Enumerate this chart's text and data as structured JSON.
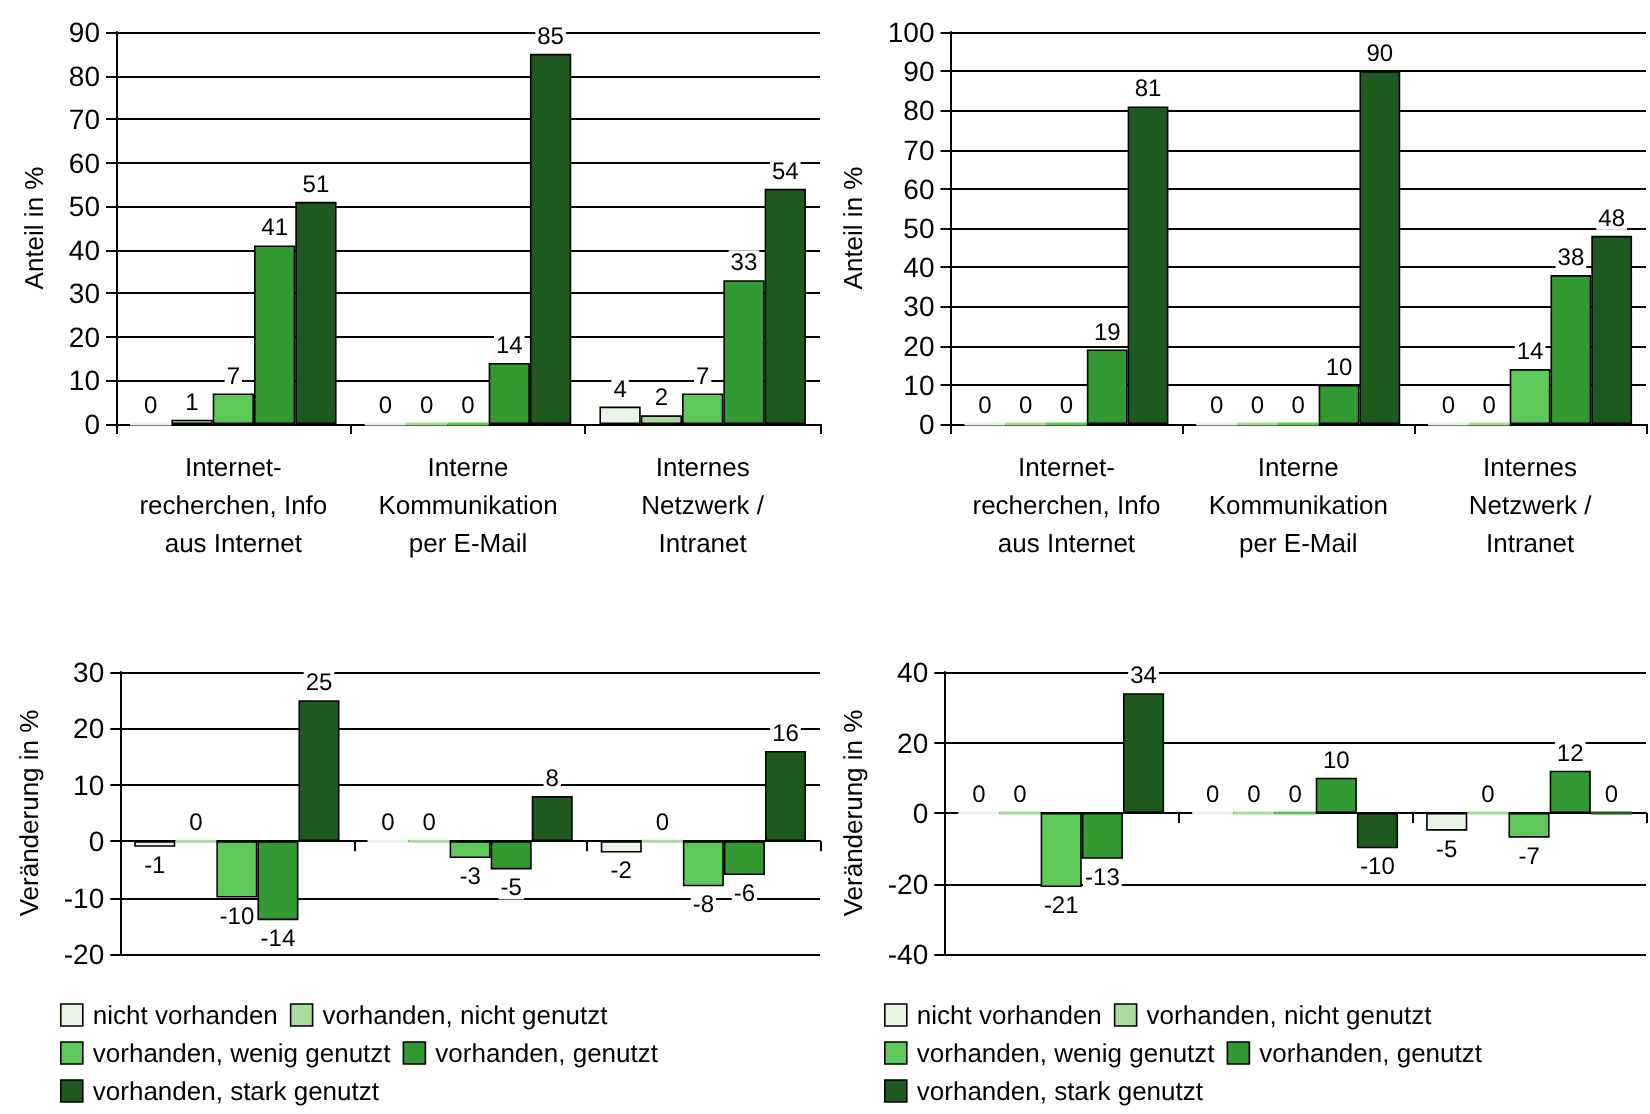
{
  "chart_data": [
    {
      "type": "bar",
      "categories": [
        "Internet-\nrecherchen, Info\naus Internet",
        "Interne\nKommunikation\nper E-Mail",
        "Internes\nNetzwerk /\nIntranet"
      ],
      "ylabel": "Anteil in %",
      "ylim": [
        0,
        90
      ],
      "yticks": [
        0,
        10,
        20,
        30,
        40,
        50,
        60,
        70,
        80,
        90
      ],
      "grid": "y",
      "data_labels": true,
      "legend": false,
      "series": [
        {
          "color": "#e8f5e4",
          "values": [
            0,
            0,
            4
          ]
        },
        {
          "color": "#a8dc9c",
          "values": [
            1,
            0,
            2
          ]
        },
        {
          "color": "#5ec85a",
          "values": [
            7,
            0,
            7
          ]
        },
        {
          "color": "#339933",
          "values": [
            41,
            14,
            33
          ]
        },
        {
          "color": "#1e5a1e",
          "values": [
            51,
            85,
            54
          ]
        }
      ]
    },
    {
      "type": "bar",
      "categories": [
        "Internet-\nrecherchen, Info\naus Internet",
        "Interne\nKommunikation\nper E-Mail",
        "Internes\nNetzwerk /\nIntranet"
      ],
      "ylabel": "Anteil in %",
      "ylim": [
        0,
        100
      ],
      "yticks": [
        0,
        10,
        20,
        30,
        40,
        50,
        60,
        70,
        80,
        90,
        100
      ],
      "grid": "y",
      "data_labels": true,
      "legend": false,
      "series": [
        {
          "color": "#e8f5e4",
          "values": [
            0,
            0,
            0
          ]
        },
        {
          "color": "#a8dc9c",
          "values": [
            0,
            0,
            0
          ]
        },
        {
          "color": "#5ec85a",
          "values": [
            0,
            0,
            14
          ]
        },
        {
          "color": "#339933",
          "values": [
            19,
            10,
            38
          ]
        },
        {
          "color": "#1e5a1e",
          "values": [
            81,
            90,
            48
          ]
        }
      ]
    },
    {
      "type": "bar",
      "categories": [
        null,
        null,
        null
      ],
      "ylabel": "Veränderung in %",
      "ylim": [
        -20,
        30
      ],
      "yticks": [
        -20,
        -10,
        0,
        10,
        20,
        30
      ],
      "grid": "y",
      "data_labels": true,
      "legend": "bottom",
      "series": [
        {
          "name": "nicht vorhanden",
          "color": "#e8f5e4",
          "values": [
            -1,
            0,
            -2
          ]
        },
        {
          "name": "vorhanden, nicht genutzt",
          "color": "#a8dc9c",
          "values": [
            0,
            0,
            0
          ]
        },
        {
          "name": "vorhanden, wenig genutzt",
          "color": "#5ec85a",
          "values": [
            -10,
            -3,
            -8
          ]
        },
        {
          "name": "vorhanden, genutzt",
          "color": "#339933",
          "values": [
            -14,
            -5,
            -6
          ]
        },
        {
          "name": "vorhanden, stark genutzt",
          "color": "#1e5a1e",
          "values": [
            25,
            8,
            16
          ]
        }
      ]
    },
    {
      "type": "bar",
      "categories": [
        null,
        null,
        null
      ],
      "ylabel": "Veränderung in %",
      "ylim": [
        -40,
        40
      ],
      "yticks": [
        -40,
        -20,
        0,
        20,
        40
      ],
      "grid": "y",
      "data_labels": true,
      "legend": "bottom",
      "series": [
        {
          "name": "nicht vorhanden",
          "color": "#e8f5e4",
          "values": [
            0,
            0,
            -5
          ]
        },
        {
          "name": "vorhanden, nicht genutzt",
          "color": "#a8dc9c",
          "values": [
            0,
            0,
            0
          ]
        },
        {
          "name": "vorhanden, wenig genutzt",
          "color": "#5ec85a",
          "values": [
            -21,
            0,
            -7
          ]
        },
        {
          "name": "vorhanden, genutzt",
          "color": "#339933",
          "values": [
            -13,
            10,
            12
          ]
        },
        {
          "name": "vorhanden, stark genutzt",
          "color": "#1e5a1e",
          "values": [
            34,
            -10,
            0
          ]
        }
      ]
    }
  ]
}
